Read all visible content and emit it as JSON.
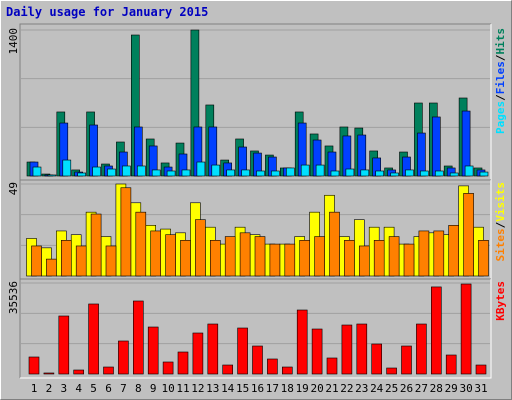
{
  "chart_data": [
    {
      "type": "bar",
      "title": "Daily usage for January 2015",
      "legend_separator": "/",
      "ylim": [
        0,
        1400
      ],
      "yticks": [
        1400
      ],
      "grid": true,
      "series": [
        {
          "name": "Hits",
          "color": "#00805c",
          "values": [
            134,
            19,
            614,
            58,
            614,
            115,
            326,
            1352,
            355,
            125,
            316,
            1400,
            681,
            153,
            355,
            240,
            201,
            77,
            614,
            403,
            288,
            470,
            460,
            240,
            77,
            230,
            700,
            700,
            96,
            748,
            77
          ]
        },
        {
          "name": "Files",
          "color": "#0040ff",
          "values": [
            134,
            10,
            508,
            38,
            489,
            96,
            230,
            470,
            288,
            86,
            211,
            470,
            470,
            125,
            278,
            220,
            182,
            77,
            508,
            345,
            230,
            384,
            393,
            173,
            58,
            182,
            412,
            566,
            77,
            623,
            58
          ]
        },
        {
          "name": "Pages",
          "color": "#00e0ff",
          "values": [
            86,
            10,
            153,
            29,
            86,
            67,
            96,
            96,
            58,
            48,
            58,
            134,
            105,
            58,
            58,
            48,
            48,
            77,
            105,
            105,
            48,
            67,
            58,
            48,
            29,
            58,
            48,
            48,
            29,
            96,
            38
          ]
        }
      ]
    },
    {
      "type": "bar",
      "legend_separator": "/",
      "ylim": [
        0,
        49
      ],
      "yticks": [
        49
      ],
      "grid": true,
      "series": [
        {
          "name": "Visits",
          "color": "#ffff00",
          "values": [
            20,
            15,
            24,
            22,
            34,
            21,
            49,
            39,
            27,
            25,
            23,
            39,
            26,
            17,
            26,
            22,
            17,
            17,
            21,
            34,
            43,
            21,
            30,
            26,
            26,
            17,
            21,
            23,
            22,
            48,
            26
          ]
        },
        {
          "name": "Sites",
          "color": "#ff8000",
          "values": [
            16,
            9,
            19,
            16,
            33,
            16,
            47,
            34,
            24,
            22,
            19,
            30,
            19,
            21,
            23,
            21,
            17,
            17,
            19,
            21,
            34,
            19,
            16,
            19,
            21,
            17,
            24,
            24,
            27,
            44,
            19
          ]
        }
      ]
    },
    {
      "type": "bar",
      "ylim": [
        0,
        35536
      ],
      "yticks": [
        35536
      ],
      "grid": true,
      "categories": [
        "1",
        "2",
        "3",
        "4",
        "5",
        "6",
        "7",
        "8",
        "9",
        "10",
        "11",
        "12",
        "13",
        "14",
        "15",
        "16",
        "17",
        "18",
        "19",
        "20",
        "21",
        "22",
        "23",
        "24",
        "25",
        "26",
        "27",
        "28",
        "29",
        "30",
        "31"
      ],
      "category_colors": [
        "#000000",
        "#000000",
        "#00805c",
        "#00805c",
        "#000000",
        "#000000",
        "#000000",
        "#000000",
        "#000000",
        "#00805c",
        "#00805c",
        "#000000",
        "#000000",
        "#000000",
        "#000000",
        "#000000",
        "#00805c",
        "#00805c",
        "#000000",
        "#000000",
        "#000000",
        "#000000",
        "#000000",
        "#00805c",
        "#00805c",
        "#000000",
        "#000000",
        "#000000",
        "#000000",
        "#000000",
        "#00805c"
      ],
      "series": [
        {
          "name": "KBytes",
          "color": "#ff0000",
          "values": [
            6640,
            400,
            22650,
            1560,
            27340,
            2730,
            12890,
            28510,
            18350,
            4690,
            8590,
            16010,
            19520,
            3510,
            17960,
            10930,
            5860,
            2730,
            24990,
            17570,
            6250,
            19130,
            19520,
            11710,
            2340,
            10930,
            19520,
            34000,
            7420,
            35140,
            3510
          ]
        }
      ]
    }
  ]
}
